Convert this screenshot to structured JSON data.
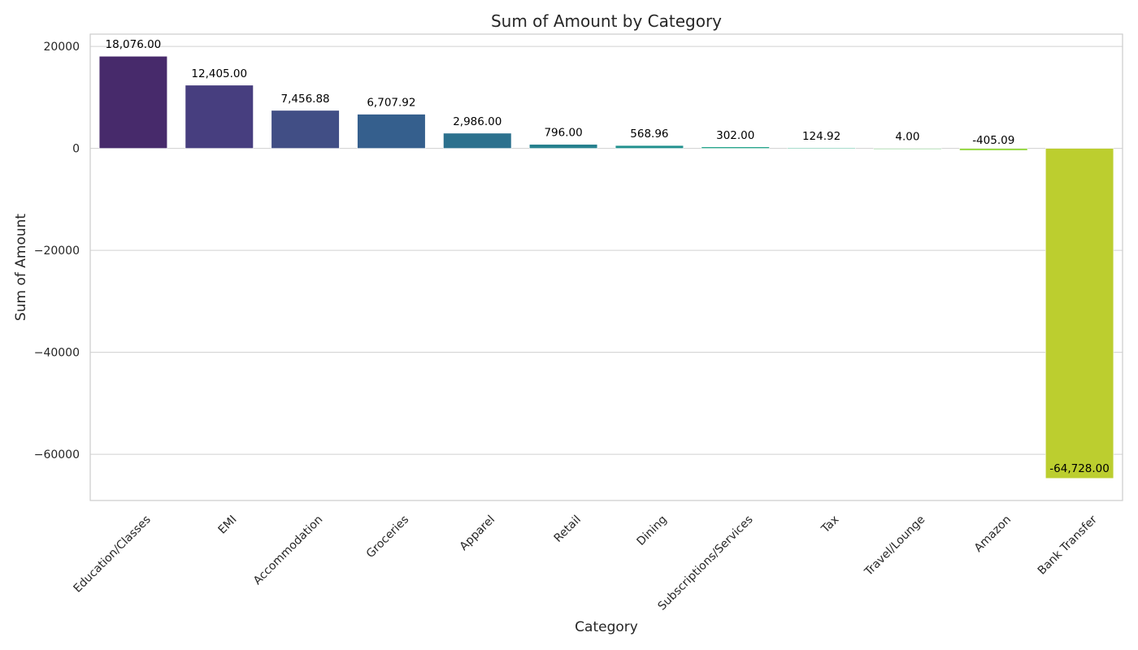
{
  "chart_data": {
    "type": "bar",
    "title": "Sum of Amount by Category",
    "xlabel": "Category",
    "ylabel": "Sum of Amount",
    "categories": [
      "Education/Classes",
      "EMI",
      "Accommodation",
      "Groceries",
      "Apparel",
      "Retail",
      "Dining",
      "Subscriptions/Services",
      "Tax",
      "Travel/Lounge",
      "Amazon",
      "Bank Transfer"
    ],
    "values": [
      18076.0,
      12405.0,
      7456.88,
      6707.92,
      2986.0,
      796.0,
      568.96,
      302.0,
      124.92,
      4.0,
      -405.09,
      -64728.0
    ],
    "value_labels": [
      "18,076.00",
      "12,405.00",
      "7,456.88",
      "6,707.92",
      "2,986.00",
      "796.00",
      "568.96",
      "302.00",
      "124.92",
      "4.00",
      "-405.09",
      "-64,728.00"
    ],
    "yticks": [
      20000,
      0,
      -20000,
      -40000,
      -60000
    ],
    "ytick_labels": [
      "20000",
      "0",
      "−20000",
      "−40000",
      "−60000"
    ],
    "ylim": [
      -69068,
      22416
    ],
    "grid": true,
    "colors": [
      "#472a6b",
      "#473e7f",
      "#414e85",
      "#355f8d",
      "#2c718e",
      "#27818e",
      "#21908d",
      "#1fa188",
      "#25ad82",
      "#5ec962",
      "#95d840",
      "#bcce2f"
    ]
  }
}
